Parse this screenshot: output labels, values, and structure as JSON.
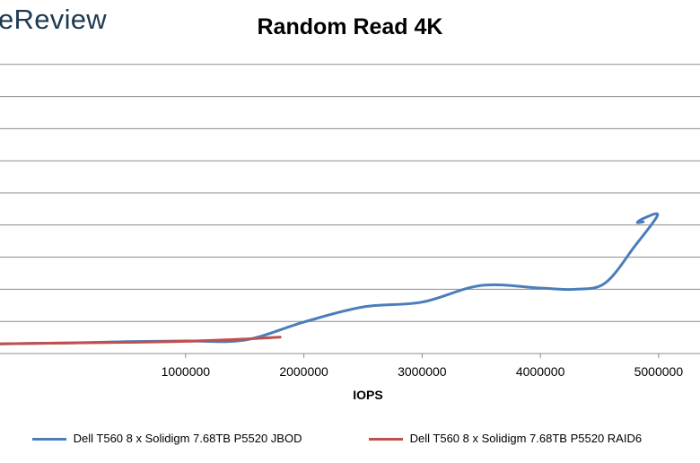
{
  "brand": {
    "text": "eReview"
  },
  "chart_data": {
    "type": "line",
    "title": "Random Read 4K",
    "xlabel": "IOPS",
    "ylabel": "",
    "xlim": [
      -600000,
      5350000
    ],
    "x_ticks": [
      1000000,
      2000000,
      3000000,
      4000000,
      5000000
    ],
    "y_gridlines": 9,
    "grid": true,
    "legend_position": "bottom",
    "series": [
      {
        "name": "Dell T560 8 x Solidigm 7.68TB P5520 JBOD",
        "color": "#4a7ebb",
        "points": [
          [
            -600000,
            0.3
          ],
          [
            0,
            0.33
          ],
          [
            500000,
            0.37
          ],
          [
            1000000,
            0.39
          ],
          [
            1500000,
            0.42
          ],
          [
            2000000,
            0.98
          ],
          [
            2500000,
            1.45
          ],
          [
            3000000,
            1.6
          ],
          [
            3500000,
            2.12
          ],
          [
            4000000,
            2.04
          ],
          [
            4300000,
            2.0
          ],
          [
            4550000,
            2.2
          ],
          [
            4800000,
            3.35
          ],
          [
            4990000,
            4.3
          ],
          [
            4880000,
            4.22
          ],
          [
            4820000,
            4.08
          ],
          [
            4870000,
            4.1
          ]
        ]
      },
      {
        "name": "Dell T560 8 x Solidigm 7.68TB P5520 RAID6",
        "color": "#c0504d",
        "points": [
          [
            -600000,
            0.3
          ],
          [
            0,
            0.33
          ],
          [
            500000,
            0.35
          ],
          [
            1000000,
            0.38
          ],
          [
            1500000,
            0.45
          ],
          [
            1800000,
            0.51
          ]
        ]
      }
    ]
  }
}
